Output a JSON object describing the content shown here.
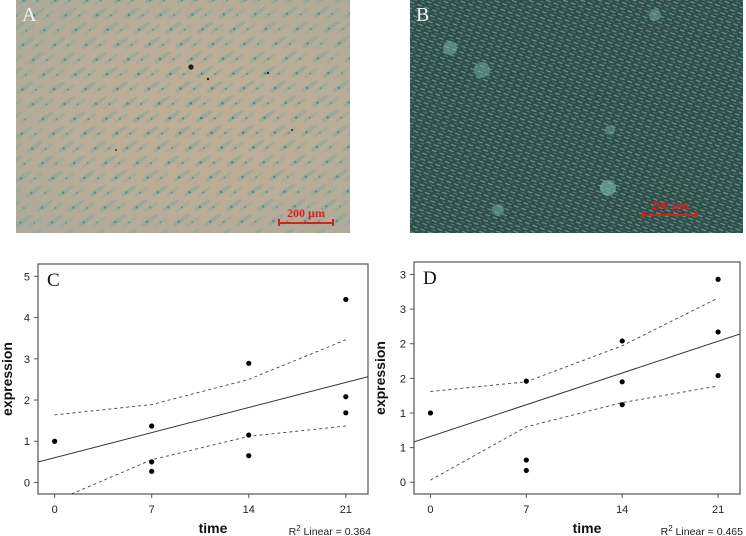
{
  "panels": {
    "A": {
      "label": "A",
      "scale_bar": "200 µm",
      "colors": {
        "background": "#b9aa94",
        "stain": "#5f8c86"
      }
    },
    "B": {
      "label": "B",
      "scale_bar": "200 µm",
      "colors": {
        "background": "#2f5652",
        "stain": "#79b0a2"
      }
    }
  },
  "chart_data": [
    {
      "panel": "C",
      "type": "scatter",
      "title": "",
      "xlabel": "time",
      "ylabel": "expression",
      "x_ticks": [
        0,
        7,
        14,
        21
      ],
      "x_tick_labels": [
        "0",
        "7",
        "14",
        "21"
      ],
      "y_ticks": [
        0,
        1,
        2,
        3,
        4,
        5
      ],
      "y_tick_labels": [
        "0",
        "1",
        "2",
        "3",
        "4",
        "5"
      ],
      "xlim": [
        -1.2,
        22.6
      ],
      "ylim": [
        -0.28,
        5.3
      ],
      "grid": false,
      "points": [
        {
          "x": 0,
          "y": 1.0
        },
        {
          "x": 7,
          "y": 1.37
        },
        {
          "x": 7,
          "y": 0.5
        },
        {
          "x": 7,
          "y": 0.27
        },
        {
          "x": 14,
          "y": 2.89
        },
        {
          "x": 14,
          "y": 1.15
        },
        {
          "x": 14,
          "y": 0.65
        },
        {
          "x": 21,
          "y": 4.44
        },
        {
          "x": 21,
          "y": 2.08
        },
        {
          "x": 21,
          "y": 1.69
        }
      ],
      "fit_line": {
        "intercept": 0.6,
        "slope": 0.087
      },
      "ci_upper": [
        [
          0,
          1.64
        ],
        [
          7,
          1.89
        ],
        [
          14,
          2.5
        ],
        [
          21,
          3.46
        ]
      ],
      "ci_lower": [
        [
          1.2,
          -0.28
        ],
        [
          7,
          0.55
        ],
        [
          14,
          1.12
        ],
        [
          21,
          1.37
        ]
      ],
      "annotation": {
        "r2_prefix": "R",
        "r2_sup": "2",
        "r2_text": " Linear = 0.364"
      }
    },
    {
      "panel": "D",
      "type": "scatter",
      "title": "",
      "xlabel": "time",
      "ylabel": "expression",
      "x_ticks": [
        0,
        7,
        14,
        21
      ],
      "x_tick_labels": [
        "0",
        "7",
        "14",
        "21"
      ],
      "y_ticks": [
        0,
        0.5,
        1.0,
        1.5,
        2.0,
        2.5,
        3.0
      ],
      "y_tick_labels": [
        "0",
        "1",
        "1",
        "2",
        "2",
        "3",
        "3"
      ],
      "xlim": [
        -1.2,
        22.6
      ],
      "ylim": [
        -0.17,
        3.18
      ],
      "grid": false,
      "points": [
        {
          "x": 0,
          "y": 1.0
        },
        {
          "x": 7,
          "y": 1.46
        },
        {
          "x": 7,
          "y": 0.32
        },
        {
          "x": 7,
          "y": 0.17
        },
        {
          "x": 14,
          "y": 2.04
        },
        {
          "x": 14,
          "y": 1.45
        },
        {
          "x": 14,
          "y": 1.12
        },
        {
          "x": 21,
          "y": 2.93
        },
        {
          "x": 21,
          "y": 2.17
        },
        {
          "x": 21,
          "y": 1.54
        }
      ],
      "fit_line": {
        "intercept": 0.66,
        "slope": 0.0655
      },
      "ci_upper": [
        [
          0,
          1.31
        ],
        [
          7,
          1.45
        ],
        [
          14,
          1.97
        ],
        [
          21,
          2.66
        ]
      ],
      "ci_lower": [
        [
          0,
          0.03
        ],
        [
          7,
          0.8
        ],
        [
          14,
          1.15
        ],
        [
          21,
          1.39
        ]
      ],
      "annotation": {
        "r2_prefix": "R",
        "r2_sup": "2",
        "r2_text": " Linear = 0.465"
      }
    }
  ]
}
